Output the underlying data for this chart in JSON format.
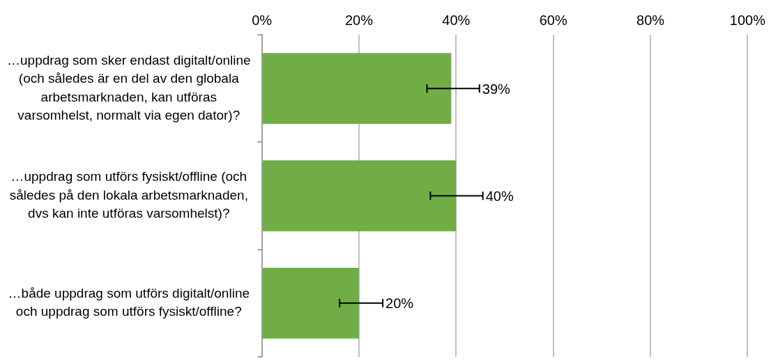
{
  "chart_data": {
    "type": "bar",
    "orientation": "horizontal",
    "categories": [
      "…uppdrag som sker endast digitalt/online (och således är en del av den globala arbetsmarknaden, kan utföras varsomhelst, normalt via egen dator)?",
      "…uppdrag som utförs fysiskt/offline (och således på den lokala arbetsmarknaden, dvs kan inte utföras varsomhelst)?",
      "…både uppdrag som utförs digitalt/online och uppdrag som utförs fysiskt/offline?"
    ],
    "values": [
      39,
      40,
      20
    ],
    "errors": [
      [
        34,
        44.8
      ],
      [
        34.7,
        45.5
      ],
      [
        16,
        24.9
      ]
    ],
    "color": "#70ad47",
    "xlim": [
      0,
      100
    ],
    "xticks": [
      {
        "value": 0,
        "label": "0%"
      },
      {
        "value": 20,
        "label": "20%"
      },
      {
        "value": 40,
        "label": "40%"
      },
      {
        "value": 60,
        "label": "60%"
      },
      {
        "value": 80,
        "label": "80%"
      },
      {
        "value": 100,
        "label": "100%"
      }
    ],
    "grid": "x",
    "value_labels": [
      "39%",
      "40%",
      "20%"
    ],
    "legend": false
  }
}
